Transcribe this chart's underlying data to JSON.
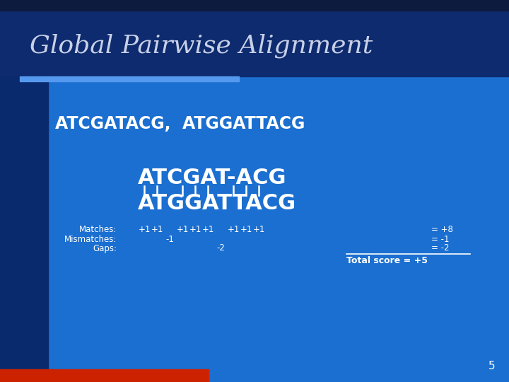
{
  "title": "Global Pairwise Alignment",
  "bg_color": "#1B6FD0",
  "bg_dark": "#0D1B3E",
  "title_bg": "#0D2B6E",
  "highlight_bar": "#5599EE",
  "left_panel": "#0A2A6E",
  "bottom_red": "#CC2200",
  "seq_input": "ATCGATACG,  ATGGATTACG",
  "align_seq1": "ATCGAT-ACG",
  "align_seq2": "ATGGATTACG",
  "pipe_positions": [
    0,
    1,
    3,
    4,
    5,
    7,
    8,
    9
  ],
  "match_positions": [
    0,
    1,
    3,
    4,
    5,
    7,
    8,
    9
  ],
  "mismatch_positions": [
    2
  ],
  "gap_positions": [
    6
  ],
  "white": "#FFFFFF",
  "light_silver": "#C8D0E8",
  "page_num": "5"
}
